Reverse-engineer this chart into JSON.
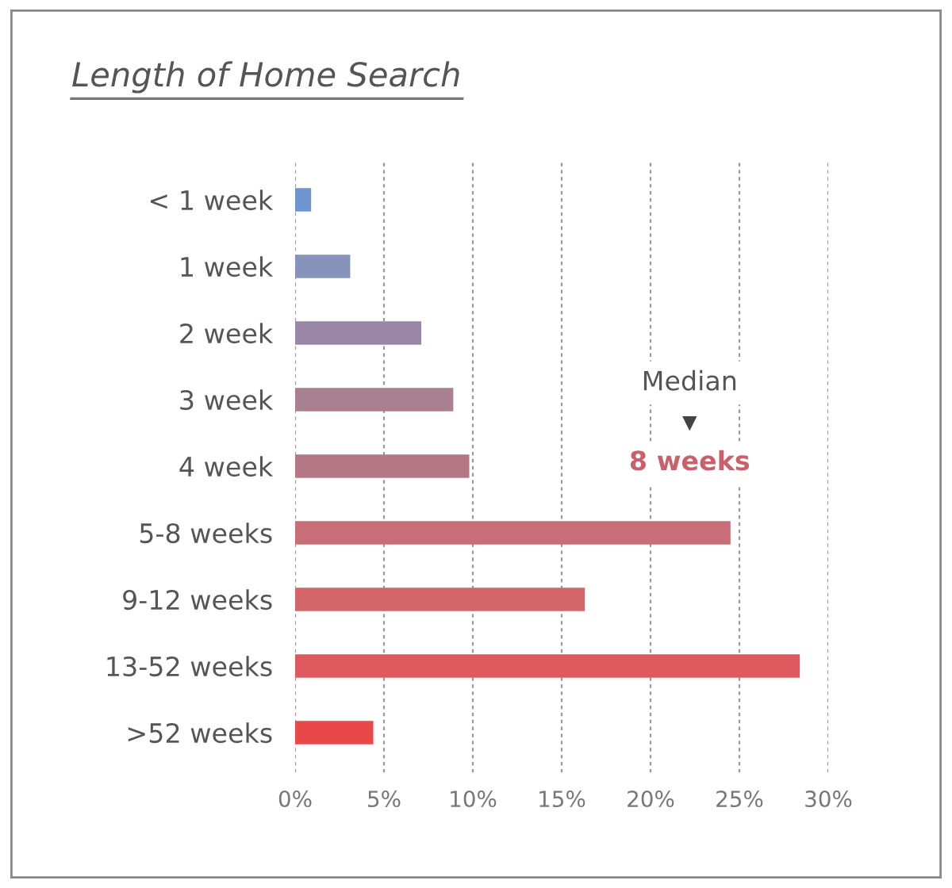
{
  "chart_data": {
    "type": "bar",
    "orientation": "horizontal",
    "title": "Length of Home Search",
    "categories": [
      "< 1 week",
      "1 week",
      "2 week",
      "3 week",
      "4 week",
      "5-8 weeks",
      "9-12 weeks",
      "13-52 weeks",
      ">52 weeks"
    ],
    "values": [
      0.9,
      3.1,
      7.1,
      8.9,
      9.8,
      24.5,
      16.3,
      28.4,
      4.4
    ],
    "colors": [
      "#6e95cf",
      "#8693bb",
      "#9a87a8",
      "#a9808f",
      "#b67784",
      "#c76e76",
      "#d4666a",
      "#de5a5e",
      "#e94848"
    ],
    "xlim": [
      0,
      30
    ],
    "xticks": [
      {
        "value": 0,
        "label": "0%"
      },
      {
        "value": 5,
        "label": "5%"
      },
      {
        "value": 10,
        "label": "10%"
      },
      {
        "value": 15,
        "label": "15%"
      },
      {
        "value": 20,
        "label": "20%"
      },
      {
        "value": 25,
        "label": "25%"
      },
      {
        "value": 30,
        "label": "30%"
      }
    ],
    "grid": "x",
    "legend": false,
    "annotations": [
      "Median",
      "8 weeks"
    ]
  }
}
